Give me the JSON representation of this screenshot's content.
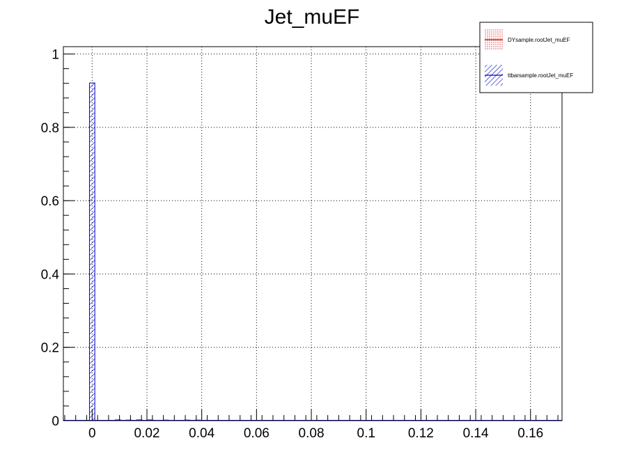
{
  "chart_data": {
    "type": "bar",
    "title": "Jet_muEF",
    "xlabel": "",
    "ylabel": "",
    "xlim": [
      -0.0105,
      0.1715
    ],
    "ylim": [
      0,
      1.02
    ],
    "grid": true,
    "x_ticks": [
      {
        "value": 0,
        "label": "0"
      },
      {
        "value": 0.02,
        "label": "0.02"
      },
      {
        "value": 0.04,
        "label": "0.04"
      },
      {
        "value": 0.06,
        "label": "0.06"
      },
      {
        "value": 0.08,
        "label": "0.08"
      },
      {
        "value": 0.1,
        "label": "0.1"
      },
      {
        "value": 0.12,
        "label": "0.12"
      },
      {
        "value": 0.14,
        "label": "0.14"
      },
      {
        "value": 0.16,
        "label": "0.16"
      }
    ],
    "y_ticks": [
      {
        "value": 0,
        "label": "0"
      },
      {
        "value": 0.2,
        "label": "0.2"
      },
      {
        "value": 0.4,
        "label": "0.4"
      },
      {
        "value": 0.6,
        "label": "0.6"
      },
      {
        "value": 0.8,
        "label": "0.8"
      },
      {
        "value": 1,
        "label": "1"
      }
    ],
    "legend_position": "top-right",
    "series": [
      {
        "name": "DYsample.rootJet_muEF",
        "color": "#cc0000",
        "fill": "dotted",
        "bins": []
      },
      {
        "name": "ttbarsample.rootJet_muEF",
        "color": "#0000cc",
        "fill": "hatched",
        "bins": [
          {
            "x": 0.0,
            "y": 0.921
          },
          {
            "x": 0.0094,
            "y": 0.002
          },
          {
            "x": 0.0133,
            "y": 0.001
          },
          {
            "x": 0.0172,
            "y": 0.002
          },
          {
            "x": 0.0211,
            "y": 0.002
          },
          {
            "x": 0.0269,
            "y": 0.001
          },
          {
            "x": 0.0347,
            "y": 0.001
          },
          {
            "x": 0.0386,
            "y": 0.001
          }
        ]
      }
    ]
  }
}
